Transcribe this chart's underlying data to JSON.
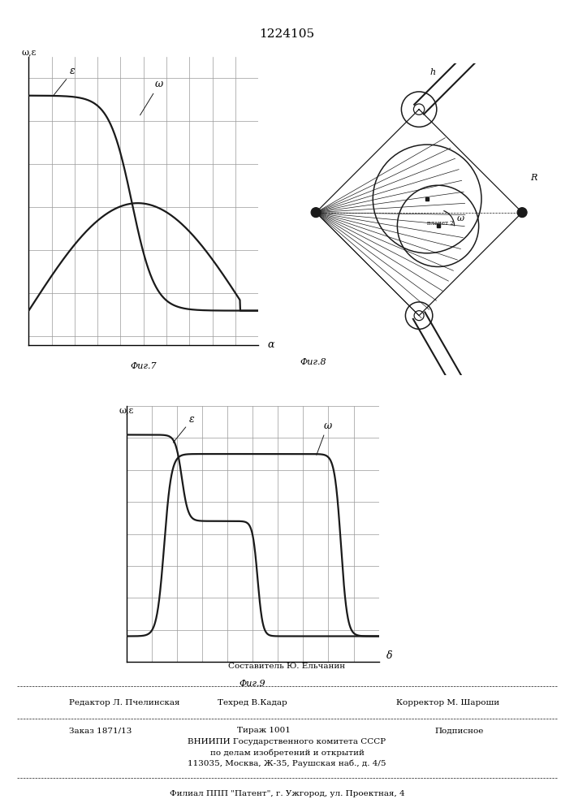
{
  "title": "1224105",
  "fig7_caption": "Фиг.7",
  "fig8_caption": "Фиг.8",
  "fig9_caption": "Фиг.9",
  "fig7_ylabel": "ω,ε",
  "fig7_xlabel": "α",
  "fig9_ylabel": "ω,ε",
  "fig9_xlabel": "δ",
  "fig7_label_epsilon": "ε",
  "fig7_label_omega": "ω",
  "fig9_label_epsilon": "ε",
  "fig9_label_omega": "ω",
  "bottom_line1": "Составитель Ю. Ельчанин",
  "bottom_line2_left": "Редактор Л. Пчелинская",
  "bottom_line2_mid": "Техред В.Кадар",
  "bottom_line2_right": "Корректор М. Шароши",
  "bottom_line3_left": "Заказ 1871/13",
  "bottom_line3_mid": "Тираж 1001",
  "bottom_line3_right": "Подписное",
  "bottom_line4": "ВНИИПИ Государственного комитета СССР",
  "bottom_line5": "по делам изобретений и открытий",
  "bottom_line6": "113035, Москва, Ж-35, Раушская наб., д. 4/5",
  "bottom_line7": "Филиал ППП \"Патент\", г. Ужгород, ул. Проектная, 4",
  "line_color": "#1a1a1a",
  "grid_color": "#999999"
}
